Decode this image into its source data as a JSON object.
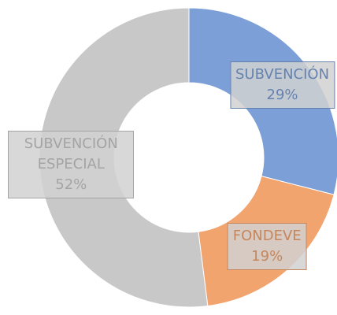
{
  "chart_data": {
    "type": "pie",
    "donut": true,
    "categories": [
      "SUBVENCIÓN",
      "FONDEVE",
      "SUBVENCIÓN ESPECIAL"
    ],
    "values": [
      29,
      19,
      52
    ],
    "value_labels": [
      "29%",
      "19%",
      "52%"
    ],
    "colors": [
      "#7b9fd6",
      "#f2a46f",
      "#c8c8c8"
    ]
  }
}
